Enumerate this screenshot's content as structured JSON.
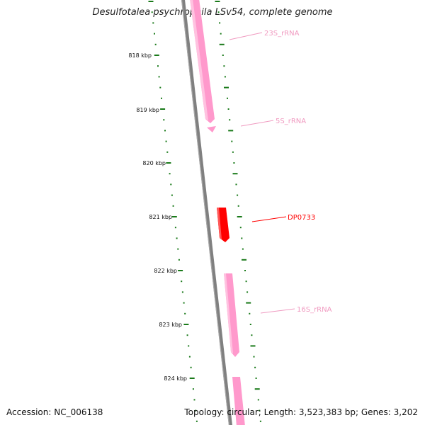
{
  "title": "Desulfotalea psychrophila LSv54, complete genome",
  "accession": "Accession: NC_006138",
  "stats": "Topology: circular; Length: 3,523,383 bp; Genes: 3,202",
  "colors": {
    "backbone": "#808080",
    "ticks": "#1a7a1a",
    "rrna": "#ff99cc",
    "rrna_label": "#f09ac0",
    "cds_highlight": "#ff0000"
  },
  "scale_labels": [
    "818 kbp",
    "819 kbp",
    "820 kbp",
    "821 kbp",
    "822 kbp",
    "823 kbp",
    "824 kbp"
  ],
  "features": [
    {
      "name": "23S_rRNA",
      "type": "rRNA"
    },
    {
      "name": "5S_rRNA",
      "type": "rRNA"
    },
    {
      "name": "DP0733",
      "type": "CDS"
    },
    {
      "name": "16S_rRNA",
      "type": "rRNA"
    }
  ]
}
